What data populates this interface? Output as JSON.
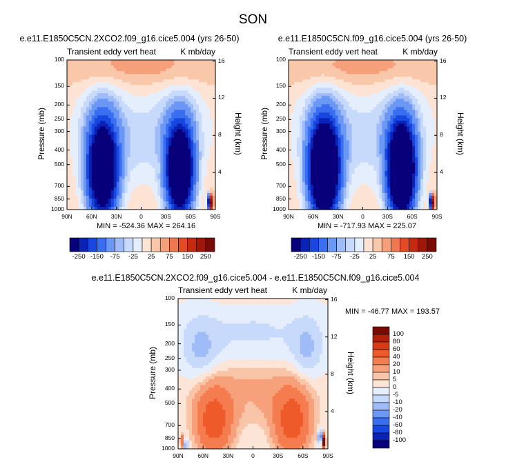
{
  "page_title": "SON",
  "chart_data": [
    {
      "type": "heatmap",
      "title": "e.e11.E1850C5CN.2XCO2.f09_g16.cice5.004 (yrs 26-50)",
      "left_string": "Transient eddy vert heat",
      "right_string": "K mb/day",
      "ylabel": "Pressure (mb)",
      "ylabel_right": "Height (km)",
      "y_ticks": [
        "100",
        "150",
        "200",
        "250",
        "300",
        "400",
        "500",
        "700",
        "850",
        "1000"
      ],
      "y_ticks_right": [
        "16",
        "12",
        "8",
        "4"
      ],
      "x_ticks": [
        "90N",
        "60N",
        "30N",
        "0",
        "30S",
        "60S",
        "90S"
      ],
      "min_max": "MIN = -524.36   MAX = 264.16",
      "z_min": -524.36,
      "z_max": 264.16
    },
    {
      "type": "heatmap",
      "title": "e.e11.E1850C5CN.f09_g16.cice5.004 (yrs 26-50)",
      "left_string": "Transient eddy vert heat",
      "right_string": "K mb/day",
      "ylabel": "Pressure (mb)",
      "ylabel_right": "Height (km)",
      "y_ticks": [
        "100",
        "150",
        "200",
        "250",
        "300",
        "400",
        "500",
        "700",
        "850",
        "1000"
      ],
      "y_ticks_right": [
        "16",
        "12",
        "8",
        "4"
      ],
      "x_ticks": [
        "90N",
        "60N",
        "30N",
        "0",
        "30S",
        "60S",
        "90S"
      ],
      "min_max": "MIN = -717.93   MAX = 225.07",
      "z_min": -717.93,
      "z_max": 225.07
    },
    {
      "type": "heatmap",
      "title": "e.e11.E1850C5CN.2XCO2.f09_g16.cice5.004 - e.e11.E1850C5CN.f09_g16.cice5.004",
      "left_string": "Transient eddy vert heat",
      "right_string": "K mb/day",
      "ylabel": "Pressure (mb)",
      "ylabel_right": "Height (km)",
      "y_ticks": [
        "100",
        "150",
        "200",
        "250",
        "300",
        "400",
        "500",
        "700",
        "850",
        "1000"
      ],
      "y_ticks_right": [
        "16",
        "12",
        "8",
        "4"
      ],
      "x_ticks": [
        "90N",
        "60N",
        "30N",
        "0",
        "30S",
        "60S",
        "90S"
      ],
      "min_max": "MIN = -46.77   MAX = 193.57",
      "z_min": -46.77,
      "z_max": 193.57
    }
  ],
  "colorbar_abs": {
    "labels": [
      "-250",
      "-150",
      "-75",
      "-25",
      "25",
      "75",
      "150",
      "250"
    ],
    "colors": [
      "#08007a",
      "#0a22b5",
      "#1747e0",
      "#3a6ef0",
      "#6b97f5",
      "#9fbcf8",
      "#c8dafb",
      "#e4eefd",
      "#fce3d3",
      "#f9c7aa",
      "#f5a07b",
      "#f0784f",
      "#e44b25",
      "#c52a0f",
      "#9e1708",
      "#7a0b04"
    ]
  },
  "colorbar_diff": {
    "labels": [
      "100",
      "80",
      "60",
      "40",
      "20",
      "10",
      "5",
      "0",
      "-5",
      "-10",
      "-20",
      "-40",
      "-60",
      "-80",
      "-100"
    ],
    "colors": [
      "#7a0b04",
      "#b0210a",
      "#d73a15",
      "#ee5a2a",
      "#f47c4f",
      "#f6a17b",
      "#f9c5a8",
      "#fce5d6",
      "#e4eefd",
      "#c8dafb",
      "#9fbcf8",
      "#6b97f5",
      "#3a6ef0",
      "#1747e0",
      "#0a22b5",
      "#08007a"
    ]
  }
}
